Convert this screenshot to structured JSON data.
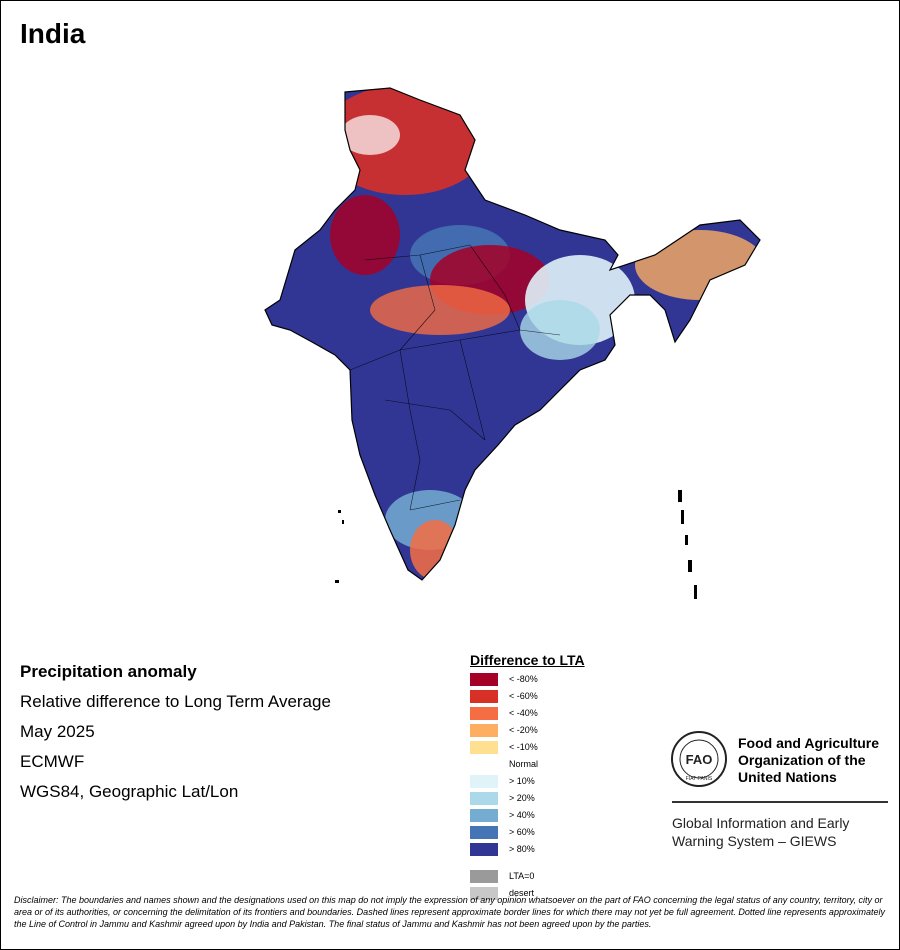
{
  "title": "India",
  "info": {
    "heading": "Precipitation anomaly",
    "line1": "Relative difference to Long Term Average",
    "line2": "May 2025",
    "line3": "ECMWF",
    "line4": "WGS84, Geographic Lat/Lon"
  },
  "legend": {
    "title": "Difference to LTA",
    "items": [
      {
        "label": "< -80%",
        "color": "#a50026"
      },
      {
        "label": "< -60%",
        "color": "#d73027"
      },
      {
        "label": "< -40%",
        "color": "#f46d43"
      },
      {
        "label": "< -20%",
        "color": "#fdae61"
      },
      {
        "label": "< -10%",
        "color": "#fee090"
      },
      {
        "label": "Normal",
        "color": "#ffffff"
      },
      {
        "label": "> 10%",
        "color": "#e0f3f8"
      },
      {
        "label": "> 20%",
        "color": "#abd9e9"
      },
      {
        "label": "> 40%",
        "color": "#74add1"
      },
      {
        "label": "> 60%",
        "color": "#4575b4"
      },
      {
        "label": "> 80%",
        "color": "#313695"
      },
      {
        "label": "LTA=0",
        "color": "#9a9a9a"
      },
      {
        "label": "desert",
        "color": "#c8c8c8"
      }
    ]
  },
  "org": {
    "logo_text": "FAO",
    "logo_sub": "FIAT PANIS",
    "name": "Food and Agriculture Organization of the United Nations",
    "system": "Global Information and Early Warning System – GIEWS"
  },
  "disclaimer": "Disclaimer: The boundaries and names shown and the designations used on this map do not imply the expression of any opinion whatsoever on the part of FAO concerning the legal status of any country, territory, city or area or of its authorities, or concerning the delimitation of its frontiers and boundaries. Dashed lines represent approximate border lines for which there may not yet be full agreement. Dotted line represents approximately the Line of Control in Jammu and Kashmir agreed upon by India and Pakistan. The final status of Jammu and Kashmir has not been agreed upon by the parties."
}
